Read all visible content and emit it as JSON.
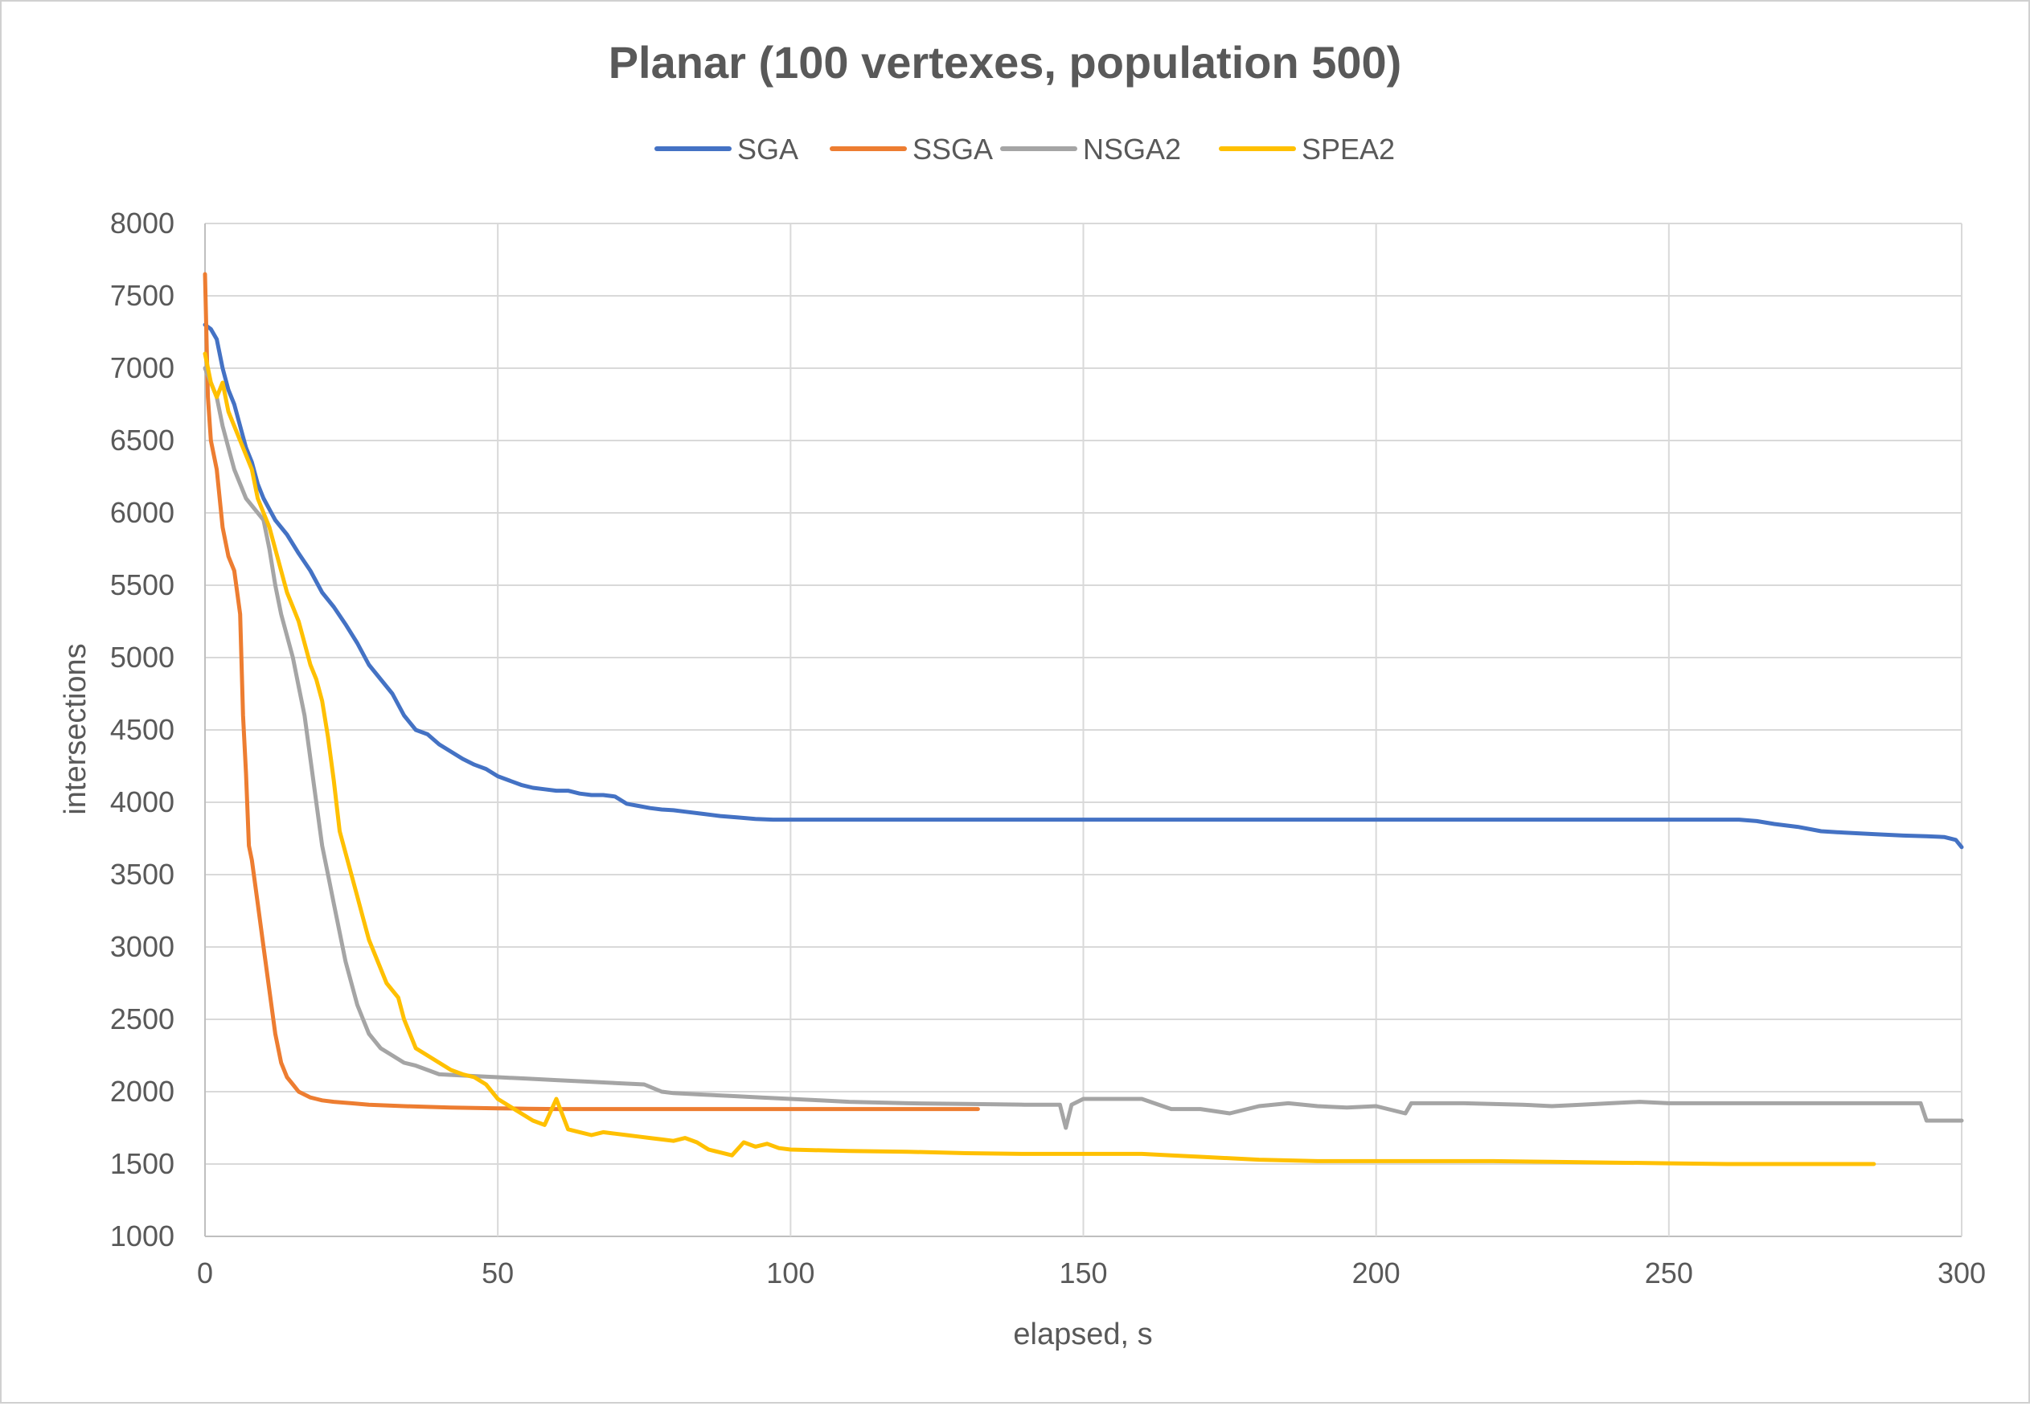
{
  "chart_data": {
    "type": "line",
    "title": "Planar (100 vertexes, population 500)",
    "xlabel": "elapsed, s",
    "ylabel": "intersections",
    "xlim": [
      0,
      300
    ],
    "ylim": [
      1000,
      8000
    ],
    "x_ticks": [
      0,
      50,
      100,
      150,
      200,
      250,
      300
    ],
    "y_ticks": [
      1000,
      1500,
      2000,
      2500,
      3000,
      3500,
      4000,
      4500,
      5000,
      5500,
      6000,
      6500,
      7000,
      7500,
      8000
    ],
    "grid": true,
    "legend_position": "top",
    "series": [
      {
        "name": "SGA",
        "color": "#4472C4",
        "points": [
          [
            0,
            7300
          ],
          [
            1,
            7270
          ],
          [
            2,
            7200
          ],
          [
            3,
            7000
          ],
          [
            4,
            6850
          ],
          [
            5,
            6750
          ],
          [
            6,
            6600
          ],
          [
            7,
            6450
          ],
          [
            8,
            6350
          ],
          [
            9,
            6200
          ],
          [
            10,
            6100
          ],
          [
            12,
            5950
          ],
          [
            14,
            5850
          ],
          [
            16,
            5720
          ],
          [
            18,
            5600
          ],
          [
            20,
            5450
          ],
          [
            22,
            5350
          ],
          [
            24,
            5230
          ],
          [
            26,
            5100
          ],
          [
            28,
            4950
          ],
          [
            30,
            4850
          ],
          [
            32,
            4750
          ],
          [
            34,
            4600
          ],
          [
            36,
            4500
          ],
          [
            38,
            4470
          ],
          [
            40,
            4400
          ],
          [
            42,
            4350
          ],
          [
            44,
            4300
          ],
          [
            46,
            4260
          ],
          [
            48,
            4230
          ],
          [
            50,
            4180
          ],
          [
            52,
            4150
          ],
          [
            54,
            4120
          ],
          [
            56,
            4100
          ],
          [
            58,
            4090
          ],
          [
            60,
            4080
          ],
          [
            62,
            4080
          ],
          [
            64,
            4060
          ],
          [
            66,
            4050
          ],
          [
            68,
            4050
          ],
          [
            70,
            4040
          ],
          [
            72,
            3990
          ],
          [
            74,
            3975
          ],
          [
            76,
            3960
          ],
          [
            78,
            3950
          ],
          [
            80,
            3945
          ],
          [
            82,
            3935
          ],
          [
            85,
            3920
          ],
          [
            88,
            3905
          ],
          [
            91,
            3895
          ],
          [
            94,
            3885
          ],
          [
            97,
            3880
          ],
          [
            100,
            3880
          ],
          [
            130,
            3880
          ],
          [
            160,
            3880
          ],
          [
            190,
            3880
          ],
          [
            220,
            3880
          ],
          [
            250,
            3880
          ],
          [
            262,
            3880
          ],
          [
            265,
            3870
          ],
          [
            268,
            3850
          ],
          [
            272,
            3830
          ],
          [
            276,
            3800
          ],
          [
            280,
            3790
          ],
          [
            285,
            3780
          ],
          [
            290,
            3770
          ],
          [
            294,
            3765
          ],
          [
            297,
            3760
          ],
          [
            299,
            3740
          ],
          [
            300,
            3690
          ]
        ]
      },
      {
        "name": "SSGA",
        "color": "#ED7D31",
        "points": [
          [
            0,
            7650
          ],
          [
            0.5,
            6800
          ],
          [
            1,
            6500
          ],
          [
            2,
            6300
          ],
          [
            3,
            5900
          ],
          [
            4,
            5700
          ],
          [
            5,
            5600
          ],
          [
            6,
            5300
          ],
          [
            6.5,
            4600
          ],
          [
            7,
            4200
          ],
          [
            7.5,
            3700
          ],
          [
            8,
            3600
          ],
          [
            9,
            3300
          ],
          [
            10,
            3000
          ],
          [
            11,
            2700
          ],
          [
            12,
            2400
          ],
          [
            13,
            2200
          ],
          [
            14,
            2100
          ],
          [
            15,
            2050
          ],
          [
            16,
            2000
          ],
          [
            17,
            1980
          ],
          [
            18,
            1960
          ],
          [
            19,
            1950
          ],
          [
            20,
            1940
          ],
          [
            22,
            1930
          ],
          [
            25,
            1920
          ],
          [
            28,
            1910
          ],
          [
            31,
            1905
          ],
          [
            34,
            1900
          ],
          [
            38,
            1895
          ],
          [
            42,
            1890
          ],
          [
            46,
            1888
          ],
          [
            50,
            1885
          ],
          [
            55,
            1882
          ],
          [
            60,
            1880
          ],
          [
            70,
            1880
          ],
          [
            80,
            1880
          ],
          [
            90,
            1880
          ],
          [
            100,
            1880
          ],
          [
            110,
            1880
          ],
          [
            120,
            1880
          ],
          [
            132,
            1880
          ]
        ]
      },
      {
        "name": "NSGA2",
        "color": "#A5A5A5",
        "points": [
          [
            0,
            7000
          ],
          [
            1,
            6900
          ],
          [
            2,
            6800
          ],
          [
            3,
            6600
          ],
          [
            4,
            6450
          ],
          [
            5,
            6300
          ],
          [
            6,
            6200
          ],
          [
            7,
            6100
          ],
          [
            8,
            6050
          ],
          [
            9,
            6000
          ],
          [
            10,
            5950
          ],
          [
            11,
            5750
          ],
          [
            12,
            5500
          ],
          [
            13,
            5300
          ],
          [
            14,
            5150
          ],
          [
            15,
            5000
          ],
          [
            16,
            4800
          ],
          [
            17,
            4600
          ],
          [
            18,
            4300
          ],
          [
            19,
            4000
          ],
          [
            20,
            3700
          ],
          [
            21,
            3500
          ],
          [
            22,
            3300
          ],
          [
            23,
            3100
          ],
          [
            24,
            2900
          ],
          [
            25,
            2750
          ],
          [
            26,
            2600
          ],
          [
            27,
            2500
          ],
          [
            28,
            2400
          ],
          [
            30,
            2300
          ],
          [
            32,
            2250
          ],
          [
            34,
            2200
          ],
          [
            36,
            2180
          ],
          [
            38,
            2150
          ],
          [
            40,
            2120
          ],
          [
            45,
            2110
          ],
          [
            50,
            2100
          ],
          [
            55,
            2090
          ],
          [
            60,
            2080
          ],
          [
            65,
            2070
          ],
          [
            70,
            2060
          ],
          [
            75,
            2050
          ],
          [
            78,
            2000
          ],
          [
            80,
            1990
          ],
          [
            85,
            1980
          ],
          [
            90,
            1970
          ],
          [
            95,
            1960
          ],
          [
            100,
            1950
          ],
          [
            105,
            1940
          ],
          [
            110,
            1930
          ],
          [
            115,
            1925
          ],
          [
            120,
            1920
          ],
          [
            130,
            1915
          ],
          [
            140,
            1910
          ],
          [
            146,
            1910
          ],
          [
            147,
            1750
          ],
          [
            148,
            1910
          ],
          [
            150,
            1950
          ],
          [
            160,
            1950
          ],
          [
            165,
            1880
          ],
          [
            170,
            1880
          ],
          [
            175,
            1850
          ],
          [
            180,
            1900
          ],
          [
            185,
            1920
          ],
          [
            190,
            1900
          ],
          [
            195,
            1890
          ],
          [
            200,
            1900
          ],
          [
            205,
            1850
          ],
          [
            206,
            1920
          ],
          [
            215,
            1920
          ],
          [
            225,
            1910
          ],
          [
            230,
            1900
          ],
          [
            235,
            1910
          ],
          [
            240,
            1920
          ],
          [
            245,
            1930
          ],
          [
            250,
            1920
          ],
          [
            260,
            1920
          ],
          [
            270,
            1920
          ],
          [
            280,
            1920
          ],
          [
            290,
            1920
          ],
          [
            293,
            1920
          ],
          [
            294,
            1800
          ],
          [
            300,
            1800
          ]
        ]
      },
      {
        "name": "SPEA2",
        "color": "#FFC000",
        "points": [
          [
            0,
            7100
          ],
          [
            1,
            6900
          ],
          [
            2,
            6800
          ],
          [
            3,
            6900
          ],
          [
            4,
            6700
          ],
          [
            5,
            6600
          ],
          [
            6,
            6500
          ],
          [
            7,
            6400
          ],
          [
            8,
            6300
          ],
          [
            9,
            6100
          ],
          [
            10,
            6000
          ],
          [
            11,
            5900
          ],
          [
            12,
            5750
          ],
          [
            13,
            5600
          ],
          [
            14,
            5450
          ],
          [
            15,
            5350
          ],
          [
            16,
            5250
          ],
          [
            17,
            5100
          ],
          [
            18,
            4950
          ],
          [
            19,
            4850
          ],
          [
            20,
            4700
          ],
          [
            21,
            4450
          ],
          [
            22,
            4150
          ],
          [
            23,
            3800
          ],
          [
            24,
            3650
          ],
          [
            25,
            3500
          ],
          [
            26,
            3350
          ],
          [
            27,
            3200
          ],
          [
            28,
            3050
          ],
          [
            29,
            2950
          ],
          [
            30,
            2850
          ],
          [
            31,
            2750
          ],
          [
            32,
            2700
          ],
          [
            33,
            2650
          ],
          [
            34,
            2500
          ],
          [
            35,
            2400
          ],
          [
            36,
            2300
          ],
          [
            38,
            2250
          ],
          [
            40,
            2200
          ],
          [
            42,
            2150
          ],
          [
            44,
            2120
          ],
          [
            46,
            2100
          ],
          [
            48,
            2050
          ],
          [
            50,
            1950
          ],
          [
            52,
            1900
          ],
          [
            54,
            1850
          ],
          [
            56,
            1800
          ],
          [
            58,
            1770
          ],
          [
            60,
            1950
          ],
          [
            62,
            1740
          ],
          [
            64,
            1720
          ],
          [
            66,
            1700
          ],
          [
            68,
            1720
          ],
          [
            70,
            1710
          ],
          [
            72,
            1700
          ],
          [
            74,
            1690
          ],
          [
            76,
            1680
          ],
          [
            78,
            1670
          ],
          [
            80,
            1660
          ],
          [
            82,
            1680
          ],
          [
            84,
            1650
          ],
          [
            86,
            1600
          ],
          [
            88,
            1580
          ],
          [
            90,
            1560
          ],
          [
            92,
            1650
          ],
          [
            94,
            1620
          ],
          [
            96,
            1640
          ],
          [
            98,
            1610
          ],
          [
            100,
            1600
          ],
          [
            110,
            1590
          ],
          [
            120,
            1585
          ],
          [
            130,
            1575
          ],
          [
            140,
            1570
          ],
          [
            150,
            1570
          ],
          [
            160,
            1570
          ],
          [
            165,
            1560
          ],
          [
            170,
            1550
          ],
          [
            180,
            1530
          ],
          [
            190,
            1520
          ],
          [
            200,
            1520
          ],
          [
            210,
            1520
          ],
          [
            220,
            1520
          ],
          [
            230,
            1515
          ],
          [
            240,
            1510
          ],
          [
            250,
            1505
          ],
          [
            260,
            1500
          ],
          [
            270,
            1500
          ],
          [
            280,
            1500
          ],
          [
            285,
            1500
          ]
        ]
      }
    ]
  }
}
